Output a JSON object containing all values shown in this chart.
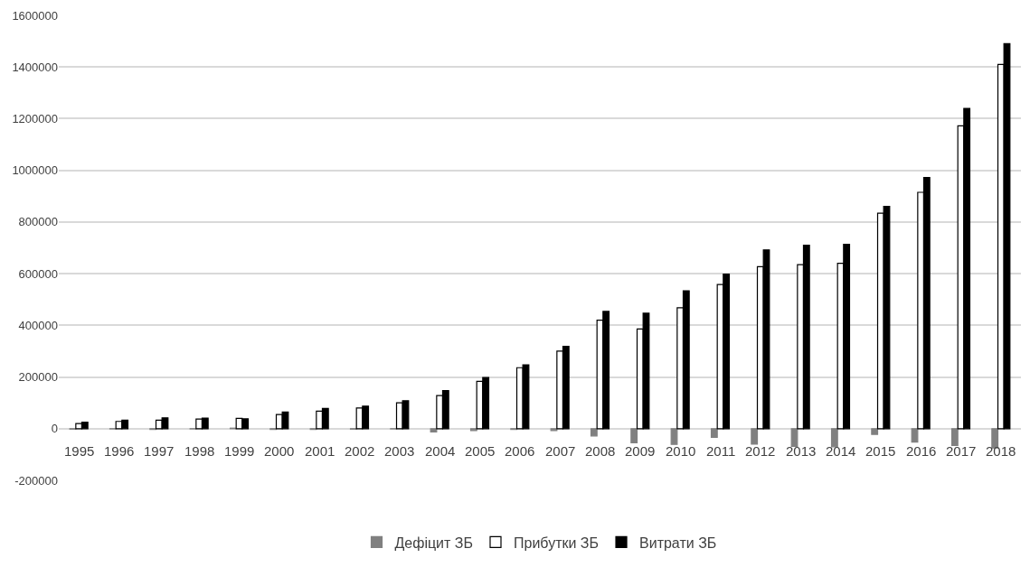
{
  "chart_data": {
    "type": "bar",
    "categories": [
      "1995",
      "1996",
      "1997",
      "1998",
      "1999",
      "2000",
      "2001",
      "2002",
      "2003",
      "2004",
      "2005",
      "2006",
      "2007",
      "2008",
      "2009",
      "2010",
      "2011",
      "2012",
      "2013",
      "2014",
      "2015",
      "2016",
      "2017",
      "2018"
    ],
    "series": [
      {
        "name": "Дефіцит ЗБ",
        "color": "#808080",
        "values": [
          -2000,
          -1000,
          -3000,
          -1000,
          2000,
          -3000,
          -3000,
          -2000,
          -1000,
          -13000,
          -7000,
          -3000,
          -7000,
          -28000,
          -55000,
          -61000,
          -34000,
          -60000,
          -69000,
          -70000,
          -22000,
          -52000,
          -65000,
          -75000
        ]
      },
      {
        "name": "Прибутки ЗБ",
        "color": "#ffffff",
        "values": [
          20000,
          28000,
          33000,
          37000,
          40000,
          55000,
          68000,
          80000,
          100000,
          128000,
          183000,
          236000,
          300000,
          420000,
          386000,
          468000,
          558000,
          627000,
          635000,
          640000,
          834000,
          915000,
          1172000,
          1410000
        ]
      },
      {
        "name": "Витрати ЗБ",
        "color": "#000000",
        "values": [
          25000,
          33000,
          42000,
          41000,
          38000,
          64000,
          78000,
          87000,
          108000,
          147000,
          198000,
          247000,
          319000,
          454000,
          447000,
          534000,
          598000,
          692000,
          710000,
          714000,
          860000,
          972000,
          1240000,
          1490000
        ]
      }
    ],
    "ylim": [
      -200000,
      1600000
    ],
    "yticks": [
      -200000,
      0,
      200000,
      400000,
      600000,
      800000,
      1000000,
      1200000,
      1400000,
      1600000
    ],
    "grid": "y",
    "legend": "bottom"
  }
}
